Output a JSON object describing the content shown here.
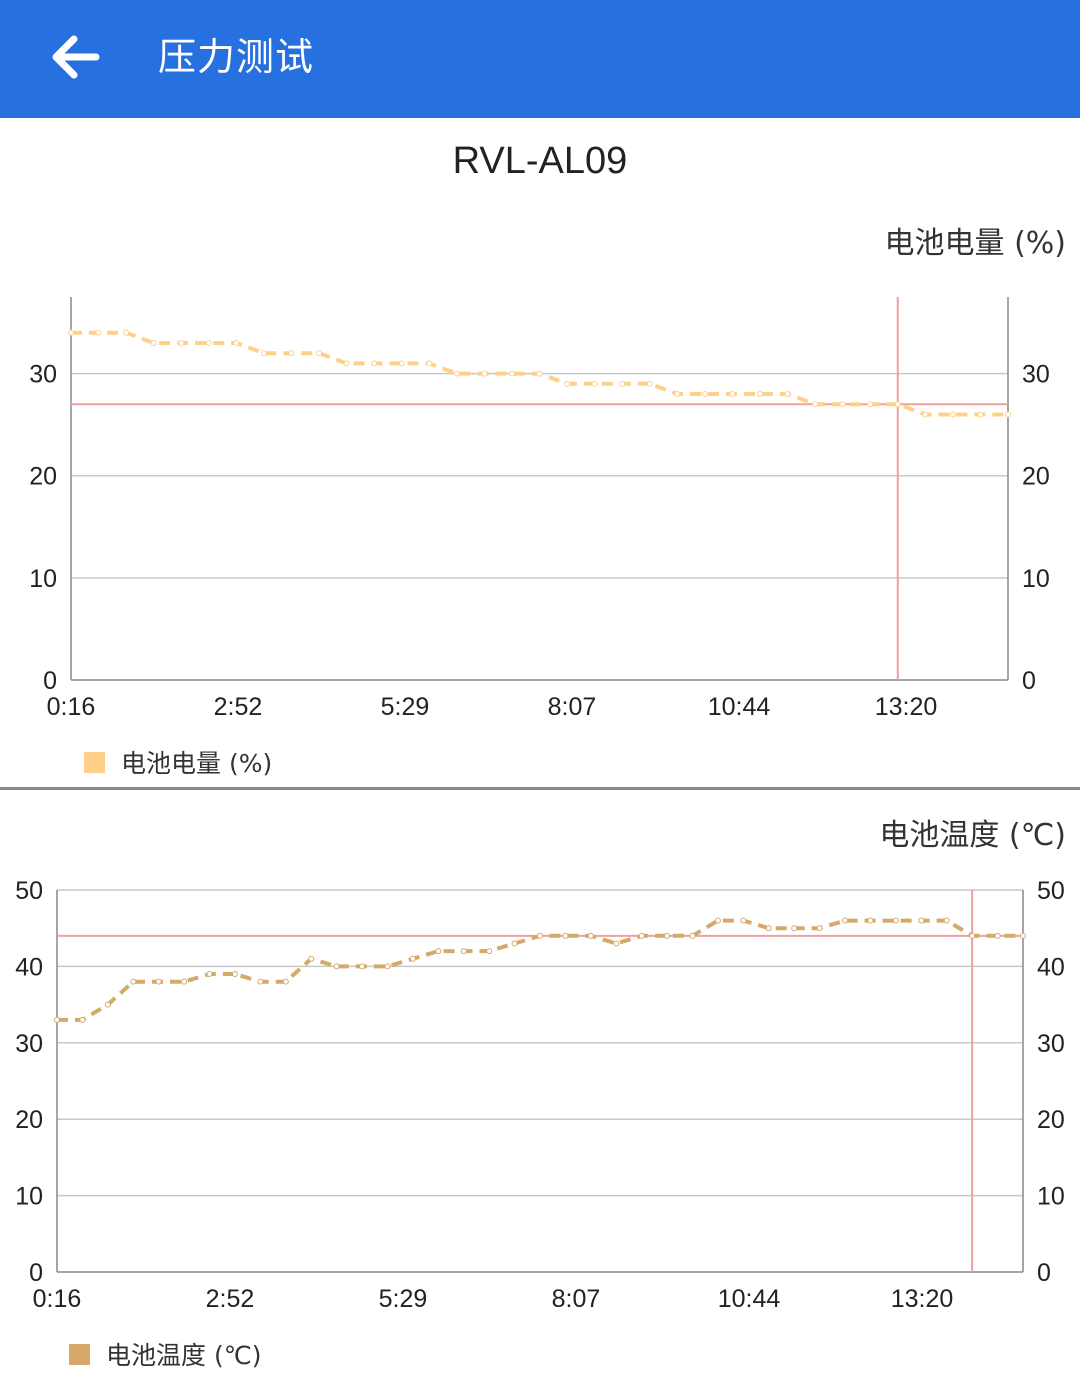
{
  "appbar": {
    "title": "压力测试",
    "back_icon": "arrow-left-icon",
    "bg_color": "#2770e0"
  },
  "device": {
    "name": "RVL-AL09"
  },
  "chart_data": [
    {
      "type": "line",
      "title": "电池电量 (%)",
      "legend": "电池电量 (%)",
      "legend_position": "bottom-left",
      "color": "#ffd08a",
      "x_tick_labels": [
        "0:16",
        "2:52",
        "5:29",
        "8:07",
        "10:44",
        "13:20"
      ],
      "ylim": [
        0,
        37.5
      ],
      "y_ticks": [
        0,
        10,
        20,
        30
      ],
      "grid": true,
      "series": [
        {
          "name": "电池电量 (%)",
          "values": [
            34,
            34,
            34,
            33,
            33,
            33,
            33,
            32,
            32,
            32,
            31,
            31,
            31,
            31,
            30,
            30,
            30,
            30,
            29,
            29,
            29,
            29,
            28,
            28,
            28,
            28,
            28,
            27,
            27,
            27,
            27,
            26,
            26,
            26,
            26
          ]
        }
      ],
      "limit_line": 27,
      "marker_index": 30
    },
    {
      "type": "line",
      "title": "电池温度 (℃)",
      "legend": "电池温度 (℃)",
      "legend_position": "bottom-left",
      "color": "#d4a96a",
      "x_tick_labels": [
        "0:16",
        "2:52",
        "5:29",
        "8:07",
        "10:44",
        "13:20"
      ],
      "ylim": [
        0,
        50
      ],
      "y_ticks": [
        0,
        10,
        20,
        30,
        40,
        50
      ],
      "grid": true,
      "series": [
        {
          "name": "电池温度 (℃)",
          "values": [
            33,
            33,
            35,
            38,
            38,
            38,
            39,
            39,
            38,
            38,
            41,
            40,
            40,
            40,
            41,
            42,
            42,
            42,
            43,
            44,
            44,
            44,
            43,
            44,
            44,
            44,
            46,
            46,
            45,
            45,
            45,
            46,
            46,
            46,
            46,
            46,
            44,
            44,
            44
          ]
        }
      ],
      "limit_line": 44,
      "marker_index": 36
    }
  ]
}
